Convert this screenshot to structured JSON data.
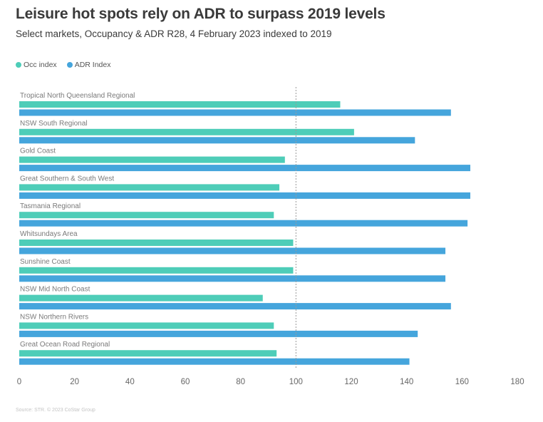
{
  "chart_data": {
    "type": "bar",
    "orientation": "horizontal",
    "title": "Leisure hot spots rely on ADR to surpass 2019 levels",
    "subtitle": "Select markets, Occupancy & ADR R28, 4 February 2023 indexed to 2019",
    "categories": [
      "Tropical North Queensland Regional",
      "NSW South Regional",
      "Gold Coast",
      "Great Southern & South West",
      "Tasmania Regional",
      "Whitsundays Area",
      "Sunshine Coast",
      "NSW Mid North Coast",
      "NSW Northern Rivers",
      "Great Ocean Road Regional"
    ],
    "series": [
      {
        "name": "Occ index",
        "color": "#4ecdb8",
        "values": [
          116,
          121,
          96,
          94,
          92,
          99,
          99,
          88,
          92,
          93
        ]
      },
      {
        "name": "ADR Index",
        "color": "#45a5dc",
        "values": [
          156,
          143,
          163,
          163,
          162,
          154,
          154,
          156,
          144,
          141
        ]
      }
    ],
    "xlim": [
      0,
      180
    ],
    "xticks": [
      0,
      20,
      40,
      60,
      80,
      100,
      120,
      140,
      160,
      180
    ],
    "reference_line": 100,
    "legend_position": "top-left",
    "xlabel": "",
    "ylabel": ""
  },
  "source": "Source: STR. © 2023 CoStar Group"
}
